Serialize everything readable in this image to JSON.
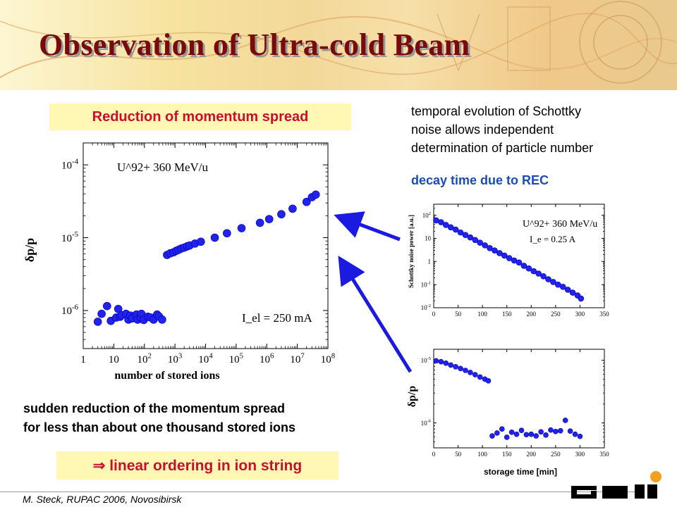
{
  "slide": {
    "title": "Observation of Ultra-cold Beam",
    "box_reduction": "Reduction of momentum spread",
    "schottky_text": [
      "temporal evolution of Schottky",
      "noise allows independent",
      "determination of particle number"
    ],
    "decay_text": "decay time due to REC",
    "sudden_text": [
      "sudden reduction of the momentum spread",
      "for less than about one thousand stored ions"
    ],
    "box_linear": "⇒ linear ordering in ion string",
    "footer": "M. Steck, RUPAC 2006, Novosibirsk",
    "logo_text": "GSI",
    "colors": {
      "title": "#7a0a0a",
      "highlight": "#c8102e",
      "box_bg": "#fff7b3",
      "accent_blue": "#1b4bb5",
      "marker": "#2222ee"
    }
  },
  "chart_data": [
    {
      "type": "scatter",
      "title": "",
      "xlabel": "number of stored ions",
      "ylabel": "δp/p",
      "xscale": "log",
      "yscale": "log",
      "xlim": [
        1,
        100000000
      ],
      "ylim": [
        3e-07,
        0.0002
      ],
      "x_ticks": [
        "1",
        "10",
        "10^2",
        "10^3",
        "10^4",
        "10^5",
        "10^6",
        "10^7",
        "10^8"
      ],
      "y_ticks": [
        "10^-4",
        "10^-5",
        "10^-6"
      ],
      "annotations": [
        "U^92+ 360 MeV/u",
        "I_el = 250 mA"
      ],
      "series": [
        {
          "points": [
            [
              3,
              7e-07
            ],
            [
              4,
              9e-07
            ],
            [
              6,
              1.15e-06
            ],
            [
              8,
              7.2e-07
            ],
            [
              12,
              8e-07
            ],
            [
              14,
              1.05e-06
            ],
            [
              16,
              8.2e-07
            ],
            [
              18,
              8.6e-07
            ],
            [
              25,
              9e-07
            ],
            [
              30,
              7.5e-07
            ],
            [
              35,
              8.5e-07
            ],
            [
              40,
              7.8e-07
            ],
            [
              55,
              8.8e-07
            ],
            [
              60,
              7.5e-07
            ],
            [
              75,
              8e-07
            ],
            [
              80,
              9e-07
            ],
            [
              95,
              7.4e-07
            ],
            [
              130,
              8.2e-07
            ],
            [
              160,
              8e-07
            ],
            [
              200,
              7.5e-07
            ],
            [
              260,
              8.8e-07
            ],
            [
              300,
              8.3e-07
            ],
            [
              380,
              7.5e-07
            ],
            [
              550,
              5.8e-06
            ],
            [
              700,
              6.1e-06
            ],
            [
              900,
              6.3e-06
            ],
            [
              1100,
              6.6e-06
            ],
            [
              1300,
              6.8e-06
            ],
            [
              1600,
              7.1e-06
            ],
            [
              2000,
              7.3e-06
            ],
            [
              2500,
              7.6e-06
            ],
            [
              3000,
              7.8e-06
            ],
            [
              4500,
              8.3e-06
            ],
            [
              7000,
              8.8e-06
            ],
            [
              20000,
              1e-05
            ],
            [
              50000,
              1.15e-05
            ],
            [
              150000,
              1.35e-05
            ],
            [
              600000,
              1.6e-05
            ],
            [
              1200000,
              1.8e-05
            ],
            [
              3000000,
              2.1e-05
            ],
            [
              7000000,
              2.5e-05
            ],
            [
              20000000,
              3.1e-05
            ],
            [
              30000000,
              3.6e-05
            ],
            [
              40000000,
              3.9e-05
            ]
          ]
        }
      ]
    },
    {
      "type": "scatter",
      "title": "",
      "xlabel": "",
      "ylabel": "Schottky noise power [a.u.]",
      "yscale": "log",
      "xlim": [
        0,
        350
      ],
      "ylim": [
        0.01,
        300
      ],
      "x_ticks": [
        "0",
        "50",
        "100",
        "150",
        "200",
        "250",
        "300",
        "350"
      ],
      "y_ticks": [
        "10^2",
        "10",
        "1",
        "10^-1",
        "10^-2"
      ],
      "annotations": [
        "U^92+ 360 MeV/u",
        "I_e = 0.25 A"
      ],
      "series": [
        {
          "points": [
            [
              5,
              60
            ],
            [
              15,
              50
            ],
            [
              25,
              38
            ],
            [
              35,
              30
            ],
            [
              45,
              24
            ],
            [
              55,
              18
            ],
            [
              65,
              14
            ],
            [
              75,
              11
            ],
            [
              85,
              8.5
            ],
            [
              95,
              6.5
            ],
            [
              105,
              5
            ],
            [
              115,
              3.8
            ],
            [
              125,
              3
            ],
            [
              135,
              2.3
            ],
            [
              145,
              1.8
            ],
            [
              155,
              1.4
            ],
            [
              165,
              1.1
            ],
            [
              175,
              0.9
            ],
            [
              185,
              0.65
            ],
            [
              195,
              0.5
            ],
            [
              205,
              0.38
            ],
            [
              215,
              0.3
            ],
            [
              225,
              0.23
            ],
            [
              235,
              0.17
            ],
            [
              245,
              0.13
            ],
            [
              255,
              0.1
            ],
            [
              265,
              0.08
            ],
            [
              275,
              0.06
            ],
            [
              285,
              0.045
            ],
            [
              295,
              0.034
            ],
            [
              302,
              0.025
            ]
          ]
        }
      ]
    },
    {
      "type": "scatter",
      "title": "",
      "xlabel": "storage time [min]",
      "ylabel": "δp/p",
      "yscale": "log",
      "xlim": [
        0,
        350
      ],
      "ylim": [
        4e-07,
        1.5e-05
      ],
      "x_ticks": [
        "0",
        "50",
        "100",
        "150",
        "200",
        "250",
        "300",
        "350"
      ],
      "y_ticks": [
        "10^-5",
        "10^-6"
      ],
      "series": [
        {
          "points": [
            [
              5,
              9.8e-06
            ],
            [
              15,
              9.5e-06
            ],
            [
              25,
              9e-06
            ],
            [
              35,
              8.4e-06
            ],
            [
              45,
              7.9e-06
            ],
            [
              55,
              7.4e-06
            ],
            [
              65,
              6.9e-06
            ],
            [
              75,
              6.4e-06
            ],
            [
              85,
              5.9e-06
            ],
            [
              95,
              5.4e-06
            ],
            [
              105,
              5e-06
            ],
            [
              112,
              4.7e-06
            ],
            [
              120,
              6.2e-07
            ],
            [
              130,
              6.9e-07
            ],
            [
              140,
              8e-07
            ],
            [
              150,
              5.9e-07
            ],
            [
              160,
              7.1e-07
            ],
            [
              170,
              6.6e-07
            ],
            [
              180,
              7.6e-07
            ],
            [
              190,
              6.5e-07
            ],
            [
              200,
              6.6e-07
            ],
            [
              210,
              6.2e-07
            ],
            [
              220,
              7.2e-07
            ],
            [
              230,
              6.4e-07
            ],
            [
              240,
              7.7e-07
            ],
            [
              250,
              7.3e-07
            ],
            [
              260,
              7.5e-07
            ],
            [
              270,
              1.1e-06
            ],
            [
              280,
              7.4e-07
            ],
            [
              290,
              6.6e-07
            ],
            [
              300,
              6.1e-07
            ]
          ]
        }
      ]
    }
  ]
}
